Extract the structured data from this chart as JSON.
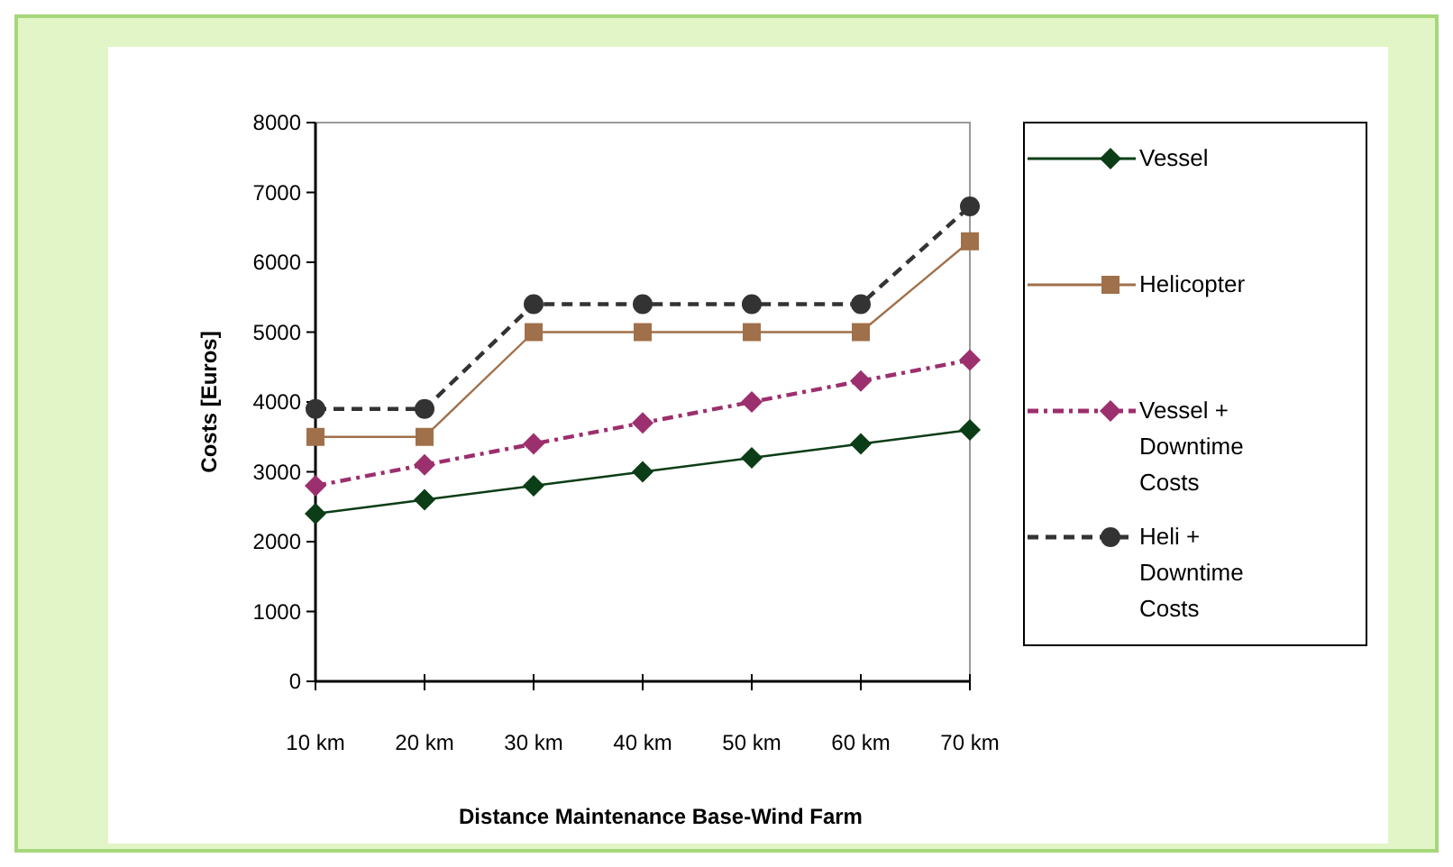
{
  "chart_data": {
    "type": "line",
    "xlabel": "Distance Maintenance Base-Wind Farm",
    "ylabel": "Costs [Euros]",
    "categories": [
      "10 km",
      "20 km",
      "30 km",
      "40 km",
      "50 km",
      "60 km",
      "70 km"
    ],
    "ylim": [
      0,
      8000
    ],
    "yticks": [
      0,
      1000,
      2000,
      3000,
      4000,
      5000,
      6000,
      7000,
      8000
    ],
    "grid": false,
    "legend": "right",
    "series": [
      {
        "name": "Vessel",
        "color": "#0b3d16",
        "marker": "diamond",
        "line_style": "solid",
        "values": [
          2400,
          2600,
          2800,
          3000,
          3200,
          3400,
          3600
        ]
      },
      {
        "name": "Helicopter",
        "color": "#a0704a",
        "marker": "square",
        "line_style": "solid",
        "values": [
          3500,
          3500,
          5000,
          5000,
          5000,
          5000,
          6300
        ]
      },
      {
        "name": "Vessel + Downtime Costs",
        "color": "#9c2f6e",
        "marker": "diamond",
        "line_style": "dashdot",
        "values": [
          2800,
          3100,
          3400,
          3700,
          4000,
          4300,
          4600
        ]
      },
      {
        "name": "Heli + Downtime Costs",
        "color": "#333333",
        "marker": "circle",
        "line_style": "dashed",
        "values": [
          3900,
          3900,
          5400,
          5400,
          5400,
          5400,
          6800
        ]
      }
    ]
  }
}
